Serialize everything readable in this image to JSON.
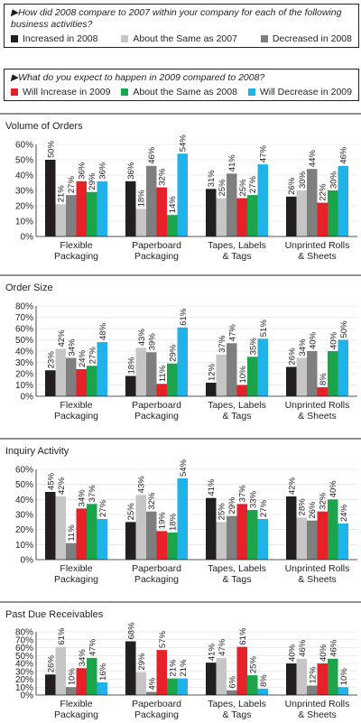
{
  "legend_titles": [
    "▶How did 2008 compare to 2007 within your company for each of the following business activities?",
    "▶What do you expect to happen in 2009 compared to 2008?"
  ],
  "chart_data": [
    {
      "type": "bar",
      "title": "Volume of Orders",
      "grid": true,
      "categories": [
        "Flexible\nPackaging",
        "Paperboard\nPackaging",
        "Tapes, Labels\n& Tags",
        "Unprinted Rolls\n& Sheets"
      ],
      "ylim": [
        0,
        60
      ],
      "yticks": [
        {
          "value": 0,
          "label": "0%"
        },
        {
          "value": 10,
          "label": "10%"
        },
        {
          "value": 20,
          "label": "20%"
        },
        {
          "value": 30,
          "label": "30%"
        },
        {
          "value": 40,
          "label": "40%"
        },
        {
          "value": 50,
          "label": "50%"
        },
        {
          "value": 60,
          "label": "60%"
        }
      ],
      "series": [
        {
          "name": "Increased in 2008",
          "color": "#231f20",
          "values": [
            50,
            36,
            31,
            26
          ],
          "value_labels": [
            "50%",
            "36%",
            "31%",
            "26%"
          ]
        },
        {
          "name": "About the Same as 2007",
          "color": "#c6c6c6",
          "values": [
            21,
            18,
            25,
            30
          ],
          "value_labels": [
            "21%",
            "18%",
            "25%",
            "30%"
          ]
        },
        {
          "name": "Decreased in 2008",
          "color": "#7f7f7f",
          "values": [
            27,
            46,
            41,
            44
          ],
          "value_labels": [
            "27%",
            "46%",
            "41%",
            "44%"
          ]
        },
        {
          "name": "Will Increase in 2009",
          "color": "#e62129",
          "values": [
            36,
            32,
            25,
            22
          ],
          "value_labels": [
            "36%",
            "32%",
            "25%",
            "22%"
          ]
        },
        {
          "name": "About the Same as 2008",
          "color": "#1ba54b",
          "values": [
            29,
            14,
            27,
            30
          ],
          "value_labels": [
            "29%",
            "14%",
            "27%",
            "30%"
          ]
        },
        {
          "name": "Will Decrease in 2009",
          "color": "#1fb3ea",
          "values": [
            36,
            54,
            47,
            46
          ],
          "value_labels": [
            "36%",
            "54%",
            "47%",
            "46%"
          ]
        }
      ]
    },
    {
      "type": "bar",
      "title": "Order Size",
      "grid": true,
      "categories": [
        "Flexible\nPackaging",
        "Paperboard\nPackaging",
        "Tapes, Labels\n& Tags",
        "Unprinted Rolls\n& Sheets"
      ],
      "ylim": [
        0,
        80
      ],
      "yticks": [
        {
          "value": 0,
          "label": "0%"
        },
        {
          "value": 10,
          "label": "10%"
        },
        {
          "value": 20,
          "label": "20%"
        },
        {
          "value": 30,
          "label": "30%"
        },
        {
          "value": 40,
          "label": "40%"
        },
        {
          "value": 50,
          "label": "50%"
        },
        {
          "value": 60,
          "label": "60%"
        },
        {
          "value": 70,
          "label": "70%"
        },
        {
          "value": 80,
          "label": "80%"
        }
      ],
      "series": [
        {
          "name": "Increased in 2008",
          "color": "#231f20",
          "values": [
            23,
            18,
            12,
            26
          ],
          "value_labels": [
            "23%",
            "18%",
            "12%",
            "26%"
          ]
        },
        {
          "name": "About the Same as 2007",
          "color": "#c6c6c6",
          "values": [
            42,
            43,
            37,
            34
          ],
          "value_labels": [
            "42%",
            "43%",
            "37%",
            "34%"
          ]
        },
        {
          "name": "Decreased in 2008",
          "color": "#7f7f7f",
          "values": [
            34,
            39,
            47,
            40
          ],
          "value_labels": [
            "34%",
            "39%",
            "47%",
            "40%"
          ]
        },
        {
          "name": "Will Increase in 2009",
          "color": "#e62129",
          "values": [
            24,
            11,
            10,
            8
          ],
          "value_labels": [
            "24%",
            "11%",
            "10%",
            "8%"
          ]
        },
        {
          "name": "About the Same as 2008",
          "color": "#1ba54b",
          "values": [
            27,
            29,
            35,
            40
          ],
          "value_labels": [
            "27%",
            "29%",
            "35%",
            "40%"
          ]
        },
        {
          "name": "Will Decrease in 2009",
          "color": "#1fb3ea",
          "values": [
            48,
            61,
            51,
            50
          ],
          "value_labels": [
            "48%",
            "61%",
            "51%",
            "50%"
          ]
        }
      ]
    },
    {
      "type": "bar",
      "title": "Inquiry Activity",
      "grid": true,
      "categories": [
        "Flexible\nPackaging",
        "Paperboard\nPackaging",
        "Tapes, Labels\n& Tags",
        "Unprinted Rolls\n& Sheets"
      ],
      "ylim": [
        0,
        60
      ],
      "yticks": [
        {
          "value": 0,
          "label": "0%"
        },
        {
          "value": 10,
          "label": "10%"
        },
        {
          "value": 20,
          "label": "20%"
        },
        {
          "value": 30,
          "label": "30%"
        },
        {
          "value": 40,
          "label": "40%"
        },
        {
          "value": 50,
          "label": "50%"
        },
        {
          "value": 60,
          "label": "60%"
        }
      ],
      "series": [
        {
          "name": "Increased in 2008",
          "color": "#231f20",
          "values": [
            45,
            25,
            41,
            42
          ],
          "value_labels": [
            "45%",
            "25%",
            "41%",
            "42%"
          ]
        },
        {
          "name": "About the Same as 2007",
          "color": "#c6c6c6",
          "values": [
            42,
            43,
            25,
            28
          ],
          "value_labels": [
            "42%",
            "43%",
            "25%",
            "28%"
          ]
        },
        {
          "name": "Decreased in 2008",
          "color": "#7f7f7f",
          "values": [
            11,
            32,
            29,
            26
          ],
          "value_labels": [
            "11%",
            "32%",
            "29%",
            "26%"
          ]
        },
        {
          "name": "Will Increase in 2009",
          "color": "#e62129",
          "values": [
            34,
            19,
            37,
            32
          ],
          "value_labels": [
            "34%",
            "19%",
            "37%",
            "32%"
          ]
        },
        {
          "name": "About the Same as 2008",
          "color": "#1ba54b",
          "values": [
            37,
            18,
            33,
            40
          ],
          "value_labels": [
            "37%",
            "18%",
            "33%",
            "40%"
          ]
        },
        {
          "name": "Will Decrease in 2009",
          "color": "#1fb3ea",
          "values": [
            27,
            54,
            27,
            24
          ],
          "value_labels": [
            "27%",
            "54%",
            "27%",
            "24%"
          ]
        }
      ]
    },
    {
      "type": "bar",
      "title": "Past Due Receivables",
      "grid": true,
      "categories": [
        "Flexible\nPackaging",
        "Paperboard\nPackaging",
        "Tapes, Labels\n& Tags",
        "Unprinted Rolls\n& Sheets"
      ],
      "ylim": [
        0,
        80
      ],
      "yticks": [
        {
          "value": 0,
          "label": "0%"
        },
        {
          "value": 10,
          "label": "10%"
        },
        {
          "value": 20,
          "label": "20%"
        },
        {
          "value": 30,
          "label": "30%"
        },
        {
          "value": 40,
          "label": "40%"
        },
        {
          "value": 50,
          "label": "50%"
        },
        {
          "value": 60,
          "label": "60%"
        },
        {
          "value": 70,
          "label": "70%"
        },
        {
          "value": 80,
          "label": "80%"
        }
      ],
      "series": [
        {
          "name": "Increased in 2008",
          "color": "#231f20",
          "values": [
            26,
            68,
            41,
            40
          ],
          "value_labels": [
            "26%",
            "68%",
            "41%",
            "40%"
          ]
        },
        {
          "name": "About the Same as 2007",
          "color": "#c6c6c6",
          "values": [
            61,
            29,
            47,
            46
          ],
          "value_labels": [
            "61%",
            "29%",
            "47%",
            "46%"
          ]
        },
        {
          "name": "Decreased in 2008",
          "color": "#7f7f7f",
          "values": [
            10,
            4,
            6,
            12
          ],
          "value_labels": [
            "10%",
            "4%",
            "6%",
            "12%"
          ]
        },
        {
          "name": "Will Increase in 2009",
          "color": "#e62129",
          "values": [
            34,
            57,
            61,
            40
          ],
          "value_labels": [
            "34%",
            "57%",
            "61%",
            "40%"
          ]
        },
        {
          "name": "About the Same as 2008",
          "color": "#1ba54b",
          "values": [
            47,
            21,
            25,
            46
          ],
          "value_labels": [
            "47%",
            "21%",
            "25%",
            "46%"
          ]
        },
        {
          "name": "Will Decrease in 2009",
          "color": "#1fb3ea",
          "values": [
            16,
            21,
            8,
            10
          ],
          "value_labels": [
            "16%",
            "21%",
            "8%",
            "10%"
          ]
        }
      ]
    }
  ]
}
